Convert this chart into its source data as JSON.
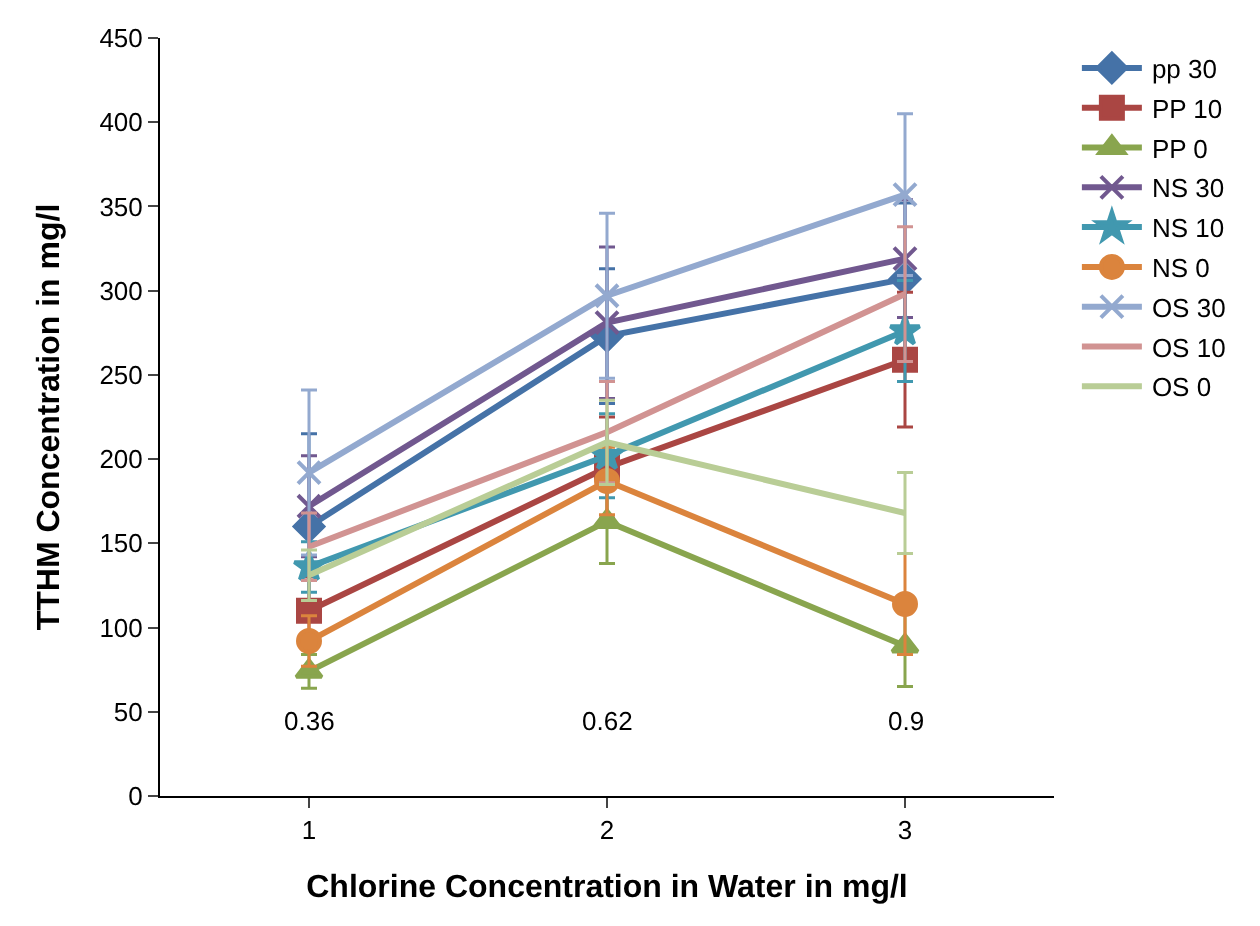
{
  "chart_data": {
    "type": "line",
    "xlabel": "Chlorine Concentration in Water in mg/l",
    "ylabel": "TTHM Concentration in mg/l",
    "x": [
      1,
      2,
      3
    ],
    "xlim": [
      0.5,
      3.5
    ],
    "xticks": [
      1,
      2,
      3
    ],
    "ylim": [
      0,
      450
    ],
    "yticks": [
      0,
      50,
      100,
      150,
      200,
      250,
      300,
      350,
      400,
      450
    ],
    "legend": "right",
    "series": [
      {
        "name": "pp 30",
        "color": "#4572a7",
        "marker": "diamond",
        "values": [
          160,
          273,
          307
        ],
        "errors": [
          55,
          40,
          45
        ]
      },
      {
        "name": "PP 10",
        "color": "#aa4643",
        "marker": "square",
        "values": [
          110,
          195,
          259
        ],
        "errors": [
          20,
          30,
          40
        ]
      },
      {
        "name": "PP 0",
        "color": "#89a54e",
        "marker": "triangle",
        "values": [
          74,
          163,
          89
        ],
        "errors": [
          10,
          25,
          24
        ]
      },
      {
        "name": "NS 30",
        "color": "#71588f",
        "marker": "cross",
        "values": [
          172,
          281,
          319
        ],
        "errors": [
          30,
          45,
          35
        ]
      },
      {
        "name": "NS 10",
        "color": "#4198af",
        "marker": "star",
        "values": [
          136,
          202,
          276
        ],
        "errors": [
          15,
          25,
          30
        ]
      },
      {
        "name": "NS 0",
        "color": "#db843d",
        "marker": "circle",
        "values": [
          92,
          187,
          114
        ],
        "errors": [
          15,
          20,
          30
        ]
      },
      {
        "name": "OS 30",
        "color": "#93a9cf",
        "marker": "cross",
        "values": [
          192,
          297,
          357
        ],
        "errors": [
          49,
          49,
          48
        ]
      },
      {
        "name": "OS 10",
        "color": "#d19392",
        "marker": "none",
        "values": [
          148,
          216,
          298
        ],
        "errors": [
          20,
          30,
          40
        ]
      },
      {
        "name": "OS 0",
        "color": "#b9cd96",
        "marker": "none",
        "values": [
          131,
          210,
          168
        ],
        "errors": [
          15,
          25,
          24
        ]
      }
    ],
    "annotations": [
      "0.36",
      "0.62",
      "0.9"
    ]
  }
}
